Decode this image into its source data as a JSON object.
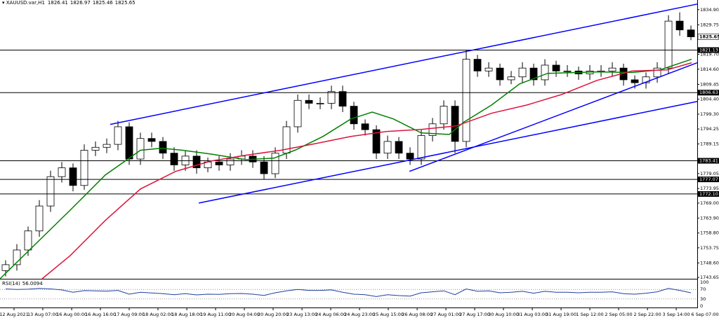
{
  "chart_data": {
    "type": "candlestick",
    "header": {
      "symbol": "XAUUSD.var,H1",
      "ohlc": [
        1826.41,
        1826.97,
        1825.46,
        1825.65
      ]
    },
    "xlim": [
      -0.5,
      61.56
    ],
    "xticks": [
      {
        "value": 0.75,
        "label": "12 Aug 2021"
      },
      {
        "value": 3.31,
        "label": "13 Aug 07:00"
      },
      {
        "value": 5.88,
        "label": "16 Aug 00:00"
      },
      {
        "value": 8.44,
        "label": "16 Aug 16:00"
      },
      {
        "value": 11.0,
        "label": "17 Aug 09:00"
      },
      {
        "value": 13.56,
        "label": "18 Aug 02:00"
      },
      {
        "value": 16.13,
        "label": "18 Aug 18:00"
      },
      {
        "value": 18.69,
        "label": "19 Aug 11:00"
      },
      {
        "value": 21.25,
        "label": "20 Aug 04:00"
      },
      {
        "value": 23.81,
        "label": "20 Aug 20:00"
      },
      {
        "value": 26.38,
        "label": "23 Aug 13:00"
      },
      {
        "value": 28.94,
        "label": "24 Aug 06:00"
      },
      {
        "value": 31.5,
        "label": "24 Aug 23:00"
      },
      {
        "value": 34.06,
        "label": "25 Aug 15:00"
      },
      {
        "value": 36.63,
        "label": "26 Aug 08:00"
      },
      {
        "value": 39.19,
        "label": "27 Aug 01:00"
      },
      {
        "value": 41.75,
        "label": "27 Aug 17:00"
      },
      {
        "value": 44.31,
        "label": "30 Aug 10:00"
      },
      {
        "value": 46.88,
        "label": "31 Aug 03:00"
      },
      {
        "value": 49.44,
        "label": "31 Aug 19:00"
      },
      {
        "value": 52.0,
        "label": "1 Sep 12:00"
      },
      {
        "value": 54.56,
        "label": "2 Sep 05:00"
      },
      {
        "value": 57.13,
        "label": "2 Sep 22:00"
      },
      {
        "value": 59.69,
        "label": "3 Sep 14:00"
      },
      {
        "value": 62.25,
        "label": "6 Sep 07:00"
      }
    ],
    "ylim": [
      1743.2,
      1837
    ],
    "yticks": [
      {
        "value": 1834.9,
        "label": "1834.90"
      },
      1829.75,
      {
        "value": 1819.7,
        "label": "1819.70"
      },
      {
        "value": 1814.6,
        "label": "1814.60"
      },
      1809.45,
      {
        "value": 1804.4,
        "label": "1804.40"
      },
      {
        "value": 1799.3,
        "label": "1799.30"
      },
      1794.25,
      1789.15,
      1779.05,
      1773.95,
      {
        "value": 1769.0,
        "label": "1769.00"
      },
      {
        "value": 1763.9,
        "label": "1763.90"
      },
      {
        "value": 1758.8,
        "label": "1758.80"
      },
      1753.75,
      {
        "value": 1748.6,
        "label": "1748.60"
      },
      1743.65
    ],
    "last_price": 1825.65,
    "levels": [
      1821.13,
      1806.63,
      1783.41,
      1777.07,
      {
        "value": 1772.1,
        "label": "1772.10"
      }
    ],
    "open": [
      1746,
      1748,
      1753,
      1759.5,
      1768,
      1778,
      1781,
      1775,
      1787,
      1788,
      1789,
      1795,
      1784,
      1791,
      1790,
      1786,
      1782,
      1785,
      1781,
      1783,
      1782,
      1784,
      1785,
      1783,
      1779,
      1786,
      1795,
      1804,
      1803,
      1803,
      1807,
      1802,
      1796,
      1794,
      1786,
      1790,
      1786,
      1784,
      1792,
      1796,
      1802,
      1790,
      1818,
      1814,
      1815,
      1811,
      1812,
      1815,
      1811,
      1816,
      1814,
      1814,
      1813,
      1814,
      1814,
      1815,
      1811,
      1810,
      1812,
      1815,
      1831,
      1828
    ],
    "high": [
      1749.5,
      1755,
      1761,
      1770,
      1780,
      1783,
      1782.5,
      1789,
      1790,
      1791,
      1797,
      1796.5,
      1793,
      1793,
      1791.5,
      1788,
      1787,
      1787,
      1784.5,
      1785,
      1786,
      1787,
      1787,
      1785,
      1788,
      1797,
      1806,
      1806,
      1805,
      1809,
      1809,
      1803.5,
      1797.5,
      1795.5,
      1792,
      1791.5,
      1788,
      1794,
      1798,
      1804,
      1804,
      1821,
      1819.5,
      1817,
      1816.5,
      1814,
      1817,
      1816.5,
      1818,
      1817.5,
      1816,
      1815.5,
      1816,
      1816,
      1817,
      1816.5,
      1812.5,
      1813.5,
      1817,
      1833,
      1834,
      1829.5
    ],
    "low": [
      1744,
      1746,
      1751,
      1757.5,
      1766,
      1776,
      1773,
      1773.5,
      1785,
      1786,
      1787,
      1782,
      1782,
      1788,
      1784,
      1780,
      1780,
      1779,
      1779.5,
      1780,
      1780,
      1782,
      1781,
      1777,
      1777.5,
      1784,
      1793,
      1801,
      1801,
      1801,
      1800,
      1794,
      1792,
      1784,
      1784,
      1784,
      1782,
      1782,
      1790,
      1794,
      1786,
      1788,
      1812,
      1812,
      1809,
      1809.5,
      1810,
      1809,
      1809,
      1812,
      1812,
      1811,
      1811,
      1812,
      1812,
      1809,
      1808,
      1808,
      1810,
      1813,
      1826,
      1824.5
    ],
    "close": [
      1748,
      1753,
      1759.5,
      1768,
      1778,
      1781,
      1775,
      1787,
      1788,
      1789,
      1795,
      1784,
      1791,
      1790,
      1786,
      1782,
      1785,
      1781,
      1783,
      1782,
      1784,
      1785,
      1783,
      1779,
      1786,
      1795,
      1804,
      1803,
      1803,
      1807,
      1802,
      1796,
      1794,
      1786,
      1790,
      1786,
      1784,
      1792,
      1796,
      1802,
      1790,
      1818,
      1814,
      1815,
      1811,
      1812,
      1815,
      1811,
      1816,
      1814,
      1814,
      1813,
      1814,
      1814,
      1815,
      1811,
      1810,
      1812,
      1815,
      1831,
      1828,
      1825.65
    ],
    "lines": [
      {
        "color": "#008000",
        "x": [
          -0.5,
          5.75,
          8.88,
          12,
          13.88,
          15.75,
          18.25,
          21.38,
          23.88,
          25.75,
          28.25,
          30.75,
          32.63,
          34.5,
          37,
          39.5,
          40.75,
          43.25,
          45.75,
          48.25,
          52.63,
          55.75,
          58.25,
          61.06
        ],
        "values": [
          1743.2,
          1766.6,
          1778.6,
          1787,
          1787.7,
          1787,
          1785.7,
          1783.8,
          1784.3,
          1787,
          1791.7,
          1797.7,
          1800,
          1797.7,
          1792.9,
          1792.4,
          1796.5,
          1802.4,
          1809.6,
          1813.2,
          1813.7,
          1813.5,
          1814.4,
          1818
        ]
      },
      {
        "color": "#dc143c",
        "x": [
          3.25,
          5.75,
          8.88,
          12,
          15.13,
          18.25,
          21.38,
          24.5,
          27.63,
          30.75,
          33.88,
          37,
          40.13,
          43.25,
          46.38,
          49.5,
          52.63,
          55.75,
          58.88,
          61.06
        ],
        "values": [
          1743.2,
          1751.1,
          1763.1,
          1773.8,
          1779.8,
          1783.3,
          1785.3,
          1787,
          1789.3,
          1791.7,
          1793.4,
          1794.1,
          1795.3,
          1799.6,
          1802.4,
          1806,
          1810.8,
          1814,
          1814.4,
          1816.8
        ]
      },
      {
        "color": "#0000ff",
        "x": [
          9.31,
          61.56
        ],
        "values": [
          1795.8,
          1836.8
        ]
      },
      {
        "color": "#0000ff",
        "x": [
          17.19,
          61.56
        ],
        "values": [
          1769.0,
          1803.6
        ]
      },
      {
        "color": "#0000ff",
        "x": [
          35.94,
          61.56
        ],
        "values": [
          1779.8,
          1816.8
        ]
      }
    ],
    "rsi": {
      "label": "RSI(14)",
      "last": 56.0094,
      "color": "#1e3fa0",
      "ylim": [
        0,
        100
      ],
      "yticks": [
        100,
        70,
        30,
        0
      ],
      "values": [
        72,
        70,
        71,
        74,
        72,
        68,
        58,
        65,
        64,
        63,
        66,
        50,
        58,
        55,
        52,
        48,
        52,
        47,
        50,
        49,
        52,
        53,
        50,
        45,
        56,
        64,
        70,
        66,
        66,
        68,
        58,
        50,
        48,
        40,
        48,
        44,
        42,
        56,
        60,
        64,
        48,
        72,
        62,
        64,
        56,
        58,
        62,
        54,
        62,
        58,
        58,
        56,
        58,
        58,
        60,
        52,
        50,
        54,
        60,
        74,
        66,
        56
      ]
    }
  }
}
